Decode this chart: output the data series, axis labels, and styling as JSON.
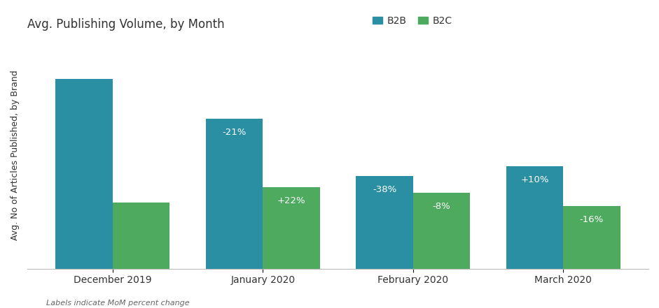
{
  "title": "Avg. Publishing Volume, by Month",
  "ylabel": "Avg. No of Articles Published, by Brand",
  "footnote": "Labels indicate MoM percent change",
  "categories": [
    "December 2019",
    "January 2020",
    "February 2020",
    "March 2020"
  ],
  "b2b_values": [
    100,
    79,
    49,
    54
  ],
  "b2c_values": [
    35,
    43,
    40,
    33
  ],
  "b2b_labels": [
    "",
    "-21%",
    "-38%",
    "+10%"
  ],
  "b2c_labels": [
    "",
    "+22%",
    "-8%",
    "-16%"
  ],
  "b2b_color": "#2b8fa3",
  "b2c_color": "#4daa5e",
  "background_color": "#ffffff",
  "legend_b2b": "B2B",
  "legend_b2c": "B2C",
  "bar_width": 0.38,
  "ylim": [
    0,
    120
  ],
  "title_fontsize": 12,
  "axis_label_fontsize": 9,
  "tick_fontsize": 10,
  "label_fontsize": 9.5,
  "footnote_fontsize": 8
}
